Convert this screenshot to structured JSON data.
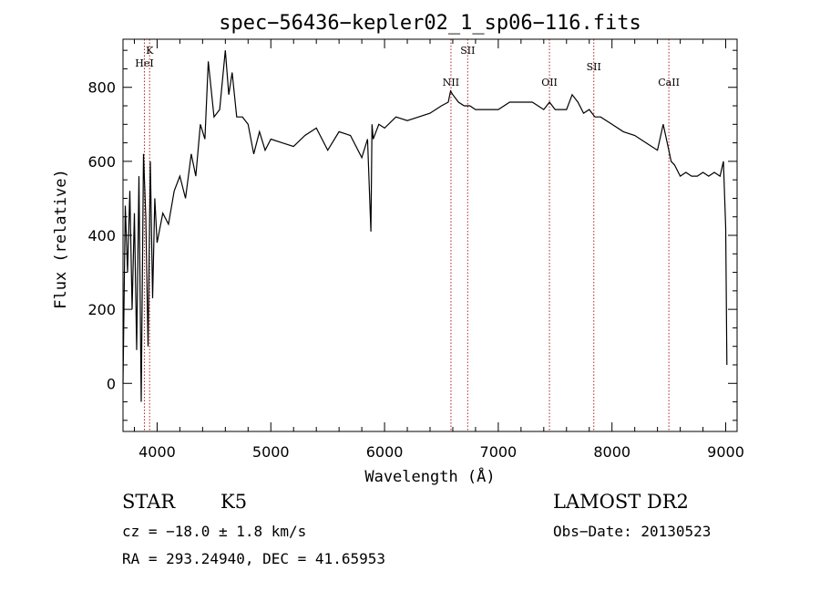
{
  "chart_data": {
    "type": "line",
    "title": "spec−56436−kepler02_1_sp06−116.fits",
    "xlabel": "Wavelength (Å)",
    "ylabel": "Flux (relative)",
    "xlim": [
      3700,
      9100
    ],
    "ylim": [
      -130,
      930
    ],
    "xticks": [
      4000,
      5000,
      6000,
      7000,
      8000,
      9000
    ],
    "yticks": [
      0,
      200,
      400,
      600,
      800
    ],
    "grid": false,
    "series": [
      {
        "x": [
          3700,
          3720,
          3740,
          3760,
          3780,
          3800,
          3820,
          3840,
          3860,
          3880,
          3900,
          3920,
          3940,
          3960,
          3980,
          4000,
          4050,
          4100,
          4150,
          4200,
          4250,
          4300,
          4340,
          4380,
          4420,
          4450,
          4500,
          4550,
          4600,
          4630,
          4660,
          4700,
          4750,
          4800,
          4850,
          4900,
          4950,
          5000,
          5100,
          5200,
          5300,
          5400,
          5500,
          5600,
          5700,
          5800,
          5850,
          5880,
          5890,
          5900,
          5950,
          6000,
          6100,
          6200,
          6300,
          6400,
          6500,
          6560,
          6580,
          6600,
          6650,
          6700,
          6750,
          6800,
          6900,
          7000,
          7100,
          7200,
          7300,
          7400,
          7450,
          7500,
          7600,
          7650,
          7700,
          7750,
          7800,
          7850,
          7900,
          8000,
          8100,
          8200,
          8300,
          8400,
          8450,
          8500,
          8520,
          8550,
          8600,
          8650,
          8700,
          8750,
          8800,
          8850,
          8900,
          8950,
          8980,
          9000,
          9010
        ],
        "y": [
          0,
          480,
          300,
          520,
          200,
          460,
          90,
          560,
          -50,
          620,
          450,
          100,
          600,
          230,
          500,
          380,
          460,
          430,
          520,
          560,
          500,
          620,
          560,
          700,
          660,
          870,
          720,
          740,
          900,
          780,
          840,
          720,
          720,
          700,
          620,
          680,
          630,
          660,
          650,
          640,
          670,
          690,
          630,
          680,
          670,
          610,
          660,
          410,
          700,
          660,
          700,
          690,
          720,
          710,
          720,
          730,
          750,
          760,
          790,
          780,
          760,
          750,
          750,
          740,
          740,
          740,
          760,
          760,
          760,
          740,
          760,
          740,
          740,
          780,
          760,
          730,
          740,
          720,
          720,
          700,
          680,
          670,
          650,
          630,
          700,
          630,
          600,
          590,
          560,
          570,
          560,
          560,
          570,
          560,
          570,
          560,
          600,
          420,
          50
        ]
      }
    ],
    "reference_lines": [
      {
        "label": "HeI",
        "x": 3888
      },
      {
        "label": "K",
        "x": 3934
      },
      {
        "label": "NII",
        "x": 6584
      },
      {
        "label": "SII",
        "x": 6731
      },
      {
        "label": "OII",
        "x": 7450
      },
      {
        "label": "SII",
        "x": 7840
      },
      {
        "label": "CaII",
        "x": 8500
      }
    ]
  },
  "info": {
    "object_class": "STAR",
    "subclass": "K5",
    "survey": "LAMOST DR2",
    "cz": "cz = −18.0 ± 1.8 km/s",
    "obs_date": "Obs−Date: 20130523",
    "coords": "RA = 293.24940, DEC =  41.65953"
  },
  "colors": {
    "spectrum": "#000000",
    "reference_line": "#b22222"
  }
}
